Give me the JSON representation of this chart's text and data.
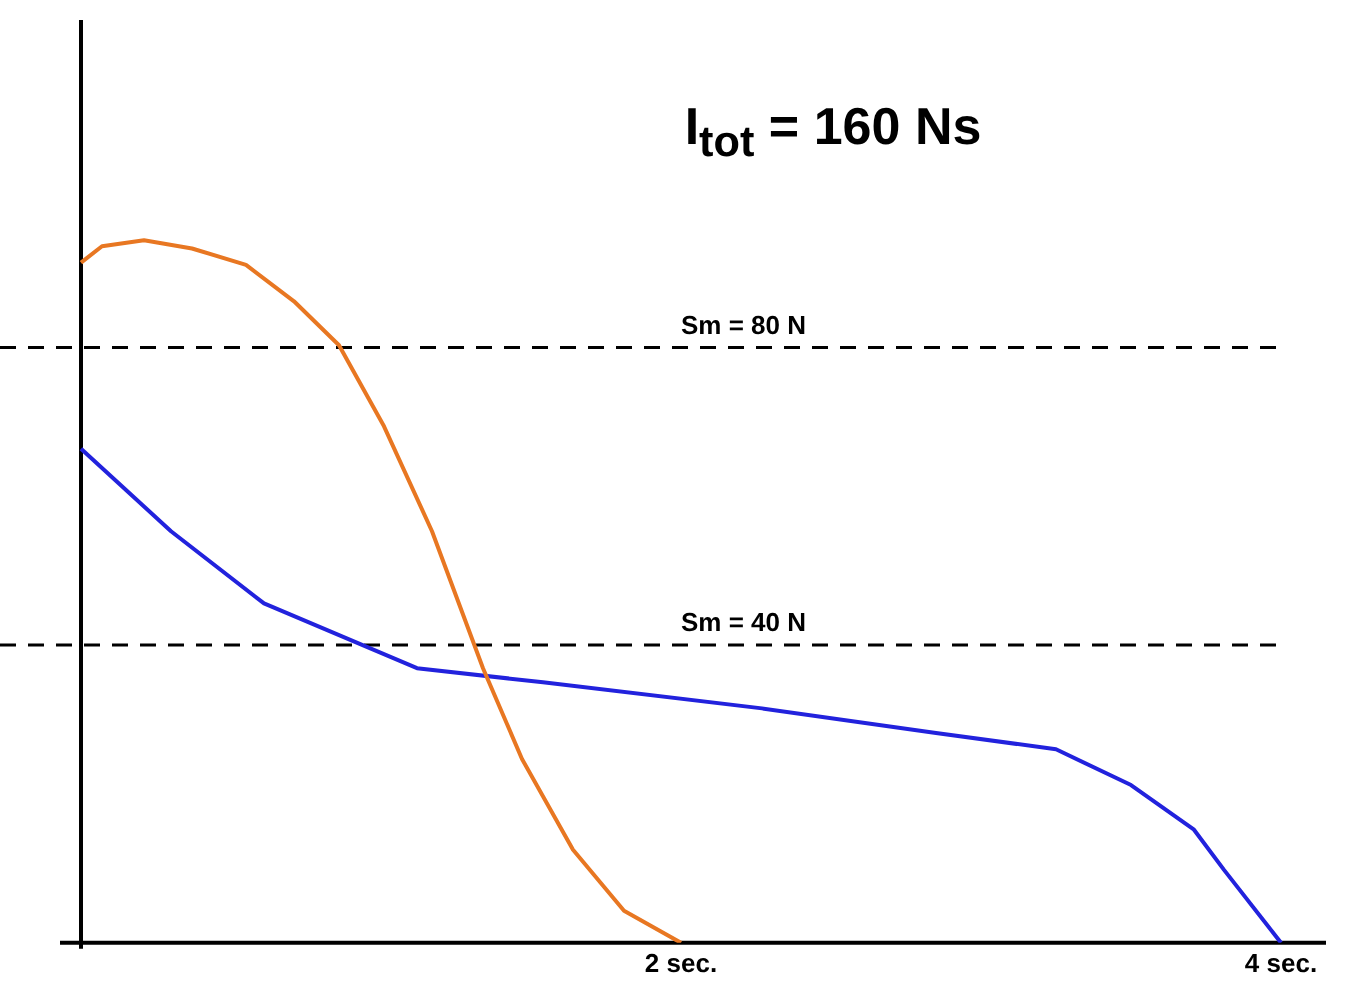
{
  "chart_data": {
    "type": "line",
    "title": "I$_{tot}$ = 160 Ns",
    "xlim": [
      -0.27,
      4.15
    ],
    "xticks": [
      {
        "value": 2,
        "label": "2 sec."
      },
      {
        "value": 4,
        "label": "4 sec."
      }
    ],
    "ylim": [
      0,
      124
    ],
    "tick_labels": "x",
    "grid": false,
    "legend": false,
    "marker": "none",
    "line_style": "solid",
    "series": [
      {
        "color": "#e87722",
        "x": [
          0,
          0.07,
          0.21,
          0.37,
          0.55,
          0.71,
          0.86,
          1.01,
          1.17,
          1.34,
          1.47,
          1.64,
          1.81,
          2.0
        ],
        "values": [
          91.4,
          93.6,
          94.4,
          93.3,
          91.1,
          86.2,
          80.3,
          69.4,
          55.3,
          36.9,
          24.7,
          12.5,
          4.3,
          0
        ]
      },
      {
        "color": "#2222dd",
        "x": [
          0,
          0.3,
          0.61,
          1.12,
          1.54,
          2.27,
          2.85,
          3.25,
          3.5,
          3.71,
          3.81,
          4.0
        ],
        "values": [
          66.4,
          55.3,
          45.6,
          36.9,
          35.0,
          31.5,
          28.2,
          26.0,
          21.2,
          15.2,
          9.8,
          0
        ]
      }
    ],
    "ref_lines": [
      {
        "axis": "y",
        "value": 80,
        "label": "Sm = 80 N",
        "color": "#000000",
        "line_style": "dashed"
      },
      {
        "axis": "y",
        "value": 40,
        "label": "Sm = 40 N",
        "color": "#000000",
        "line_style": "dashed"
      }
    ]
  }
}
